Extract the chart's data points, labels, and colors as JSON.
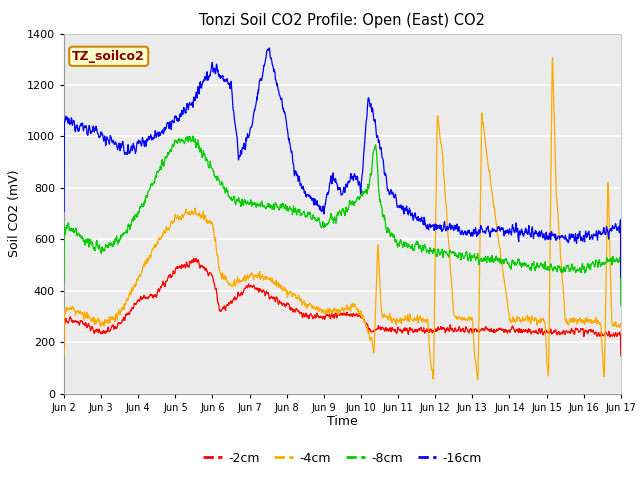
{
  "title": "Tonzi Soil CO2 Profile: Open (East) CO2",
  "ylabel": "Soil CO2 (mV)",
  "xlabel": "Time",
  "label_box": "TZ_soilco2",
  "ylim": [
    0,
    1400
  ],
  "yticks": [
    0,
    200,
    400,
    600,
    800,
    1000,
    1200,
    1400
  ],
  "xtick_labels": [
    "Jun 2",
    "Jun 3",
    "Jun 4",
    "Jun 5",
    "Jun 6",
    "Jun 7",
    "Jun 8",
    "Jun 9",
    "Jun 10",
    "Jun 11",
    "Jun 12",
    "Jun 13",
    "Jun 14",
    "Jun 15",
    "Jun 16",
    "Jun 17"
  ],
  "colors": {
    "neg2cm": "#ff0000",
    "neg4cm": "#ffaa00",
    "neg8cm": "#00cc00",
    "neg16cm": "#0000ff"
  },
  "bg_color": "#ebebeb",
  "grid_color": "#ffffff",
  "legend_labels": [
    "-2cm",
    "-4cm",
    "-8cm",
    "-16cm"
  ]
}
